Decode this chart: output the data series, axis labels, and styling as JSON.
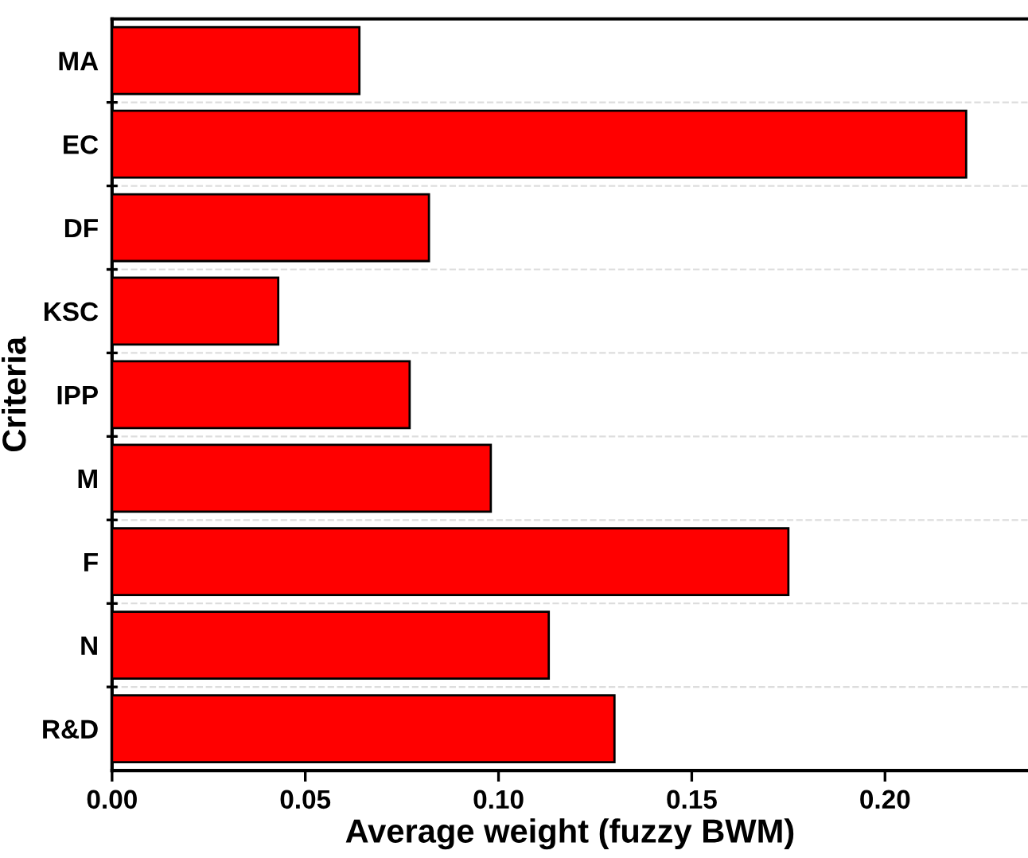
{
  "chart_data": {
    "type": "bar",
    "orientation": "horizontal",
    "xlabel": "Average weight (fuzzy BWM)",
    "ylabel": "Criteria",
    "categories": [
      "MA",
      "EC",
      "DF",
      "KSC",
      "IPP",
      "M",
      "F",
      "N",
      "R&D"
    ],
    "values": [
      0.064,
      0.221,
      0.082,
      0.043,
      0.077,
      0.098,
      0.175,
      0.113,
      0.13
    ],
    "color": "#ff0000",
    "xlim": [
      0,
      0.237
    ],
    "xticks": [
      {
        "value": 0,
        "label": "0.00"
      },
      0.05,
      {
        "value": 0.1,
        "label": "0.10"
      },
      0.15,
      {
        "value": 0.2,
        "label": "0.20"
      }
    ],
    "grid": "y"
  }
}
